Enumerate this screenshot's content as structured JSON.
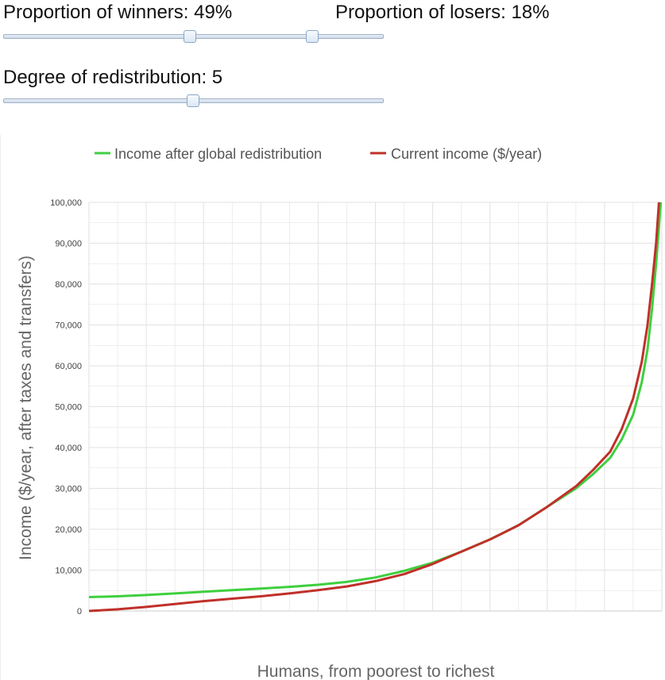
{
  "controls": {
    "winners": {
      "label": "Proportion of winners: 49%",
      "value": 49,
      "min": 0,
      "max": 100
    },
    "losers": {
      "label": "Proportion of losers: 18%",
      "value": 18,
      "min": 0,
      "max": 100
    },
    "redistribution": {
      "label": "Degree of redistribution: 5",
      "value": 5,
      "min": 0,
      "max": 10
    }
  },
  "colors": {
    "after": "#3fcf3f",
    "current": "#c0302a",
    "grid": "#e2e2e2",
    "axis": "#cccccc"
  },
  "chart_data": {
    "type": "line",
    "xlabel": "Humans, from poorest to richest",
    "ylabel": "Income ($/year, after taxes and transfers)",
    "ylim": [
      0,
      100000
    ],
    "yticks": [
      "0",
      "10,000",
      "20,000",
      "30,000",
      "40,000",
      "50,000",
      "60,000",
      "70,000",
      "80,000",
      "90,000",
      "100,000"
    ],
    "legend": {
      "position": "top"
    },
    "grid": true,
    "series": [
      {
        "name": "Income after global redistribution",
        "points": [
          [
            0,
            3400
          ],
          [
            5,
            3600
          ],
          [
            10,
            3900
          ],
          [
            15,
            4300
          ],
          [
            20,
            4700
          ],
          [
            25,
            5100
          ],
          [
            30,
            5500
          ],
          [
            35,
            5900
          ],
          [
            40,
            6400
          ],
          [
            45,
            7100
          ],
          [
            50,
            8200
          ],
          [
            55,
            9800
          ],
          [
            60,
            11800
          ],
          [
            65,
            14500
          ],
          [
            70,
            17500
          ],
          [
            75,
            21000
          ],
          [
            80,
            25500
          ],
          [
            85,
            30000
          ],
          [
            88,
            33500
          ],
          [
            91,
            37500
          ],
          [
            93,
            42000
          ],
          [
            95,
            48000
          ],
          [
            96.5,
            56000
          ],
          [
            97.5,
            64000
          ],
          [
            98.3,
            74000
          ],
          [
            99,
            85000
          ],
          [
            99.5,
            94000
          ],
          [
            99.8,
            100000
          ]
        ]
      },
      {
        "name": "Current income ($/year)",
        "points": [
          [
            0,
            0
          ],
          [
            5,
            400
          ],
          [
            10,
            1000
          ],
          [
            15,
            1700
          ],
          [
            20,
            2400
          ],
          [
            25,
            3000
          ],
          [
            30,
            3600
          ],
          [
            35,
            4300
          ],
          [
            40,
            5100
          ],
          [
            45,
            6000
          ],
          [
            50,
            7300
          ],
          [
            55,
            9000
          ],
          [
            60,
            11500
          ],
          [
            65,
            14500
          ],
          [
            70,
            17500
          ],
          [
            75,
            21000
          ],
          [
            80,
            25500
          ],
          [
            85,
            30500
          ],
          [
            88,
            34500
          ],
          [
            91,
            39000
          ],
          [
            93,
            44500
          ],
          [
            95,
            52000
          ],
          [
            96.5,
            61000
          ],
          [
            97.5,
            70000
          ],
          [
            98.3,
            80000
          ],
          [
            99,
            90000
          ],
          [
            99.5,
            100000
          ]
        ]
      }
    ]
  }
}
